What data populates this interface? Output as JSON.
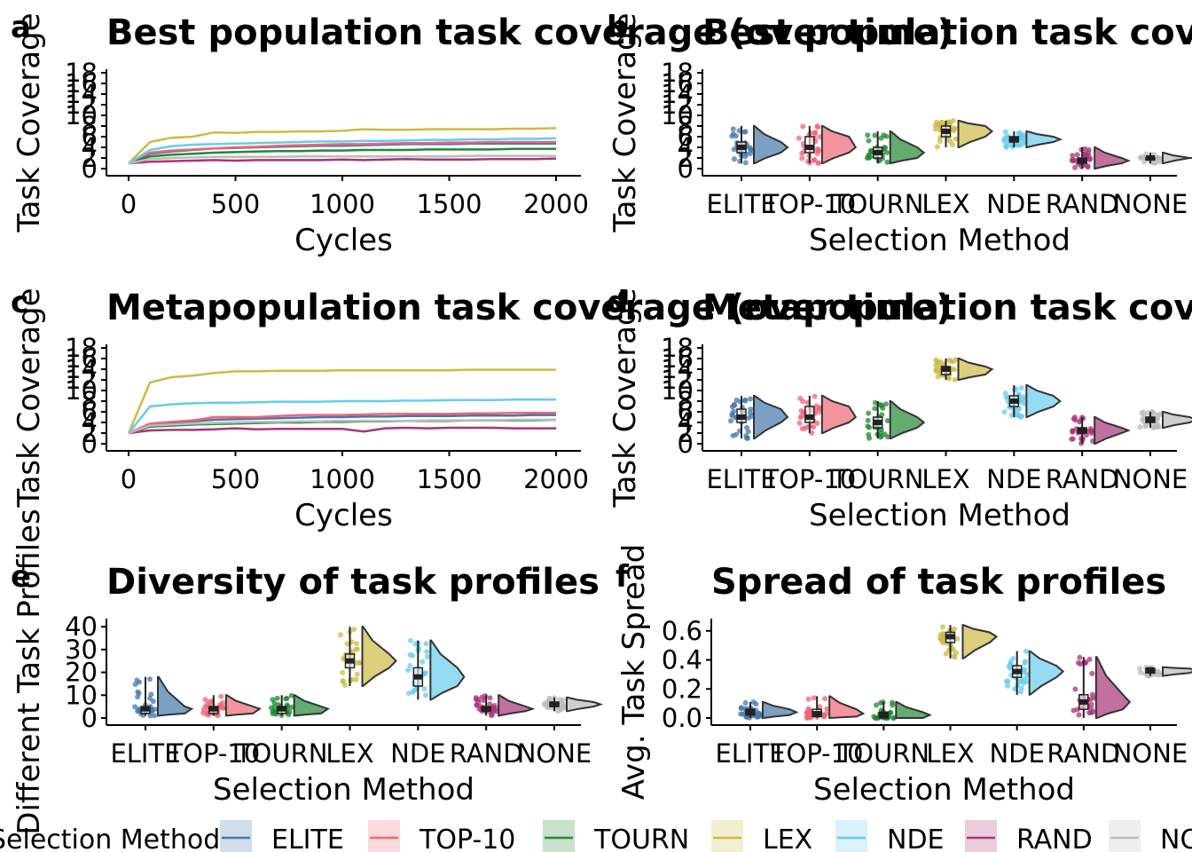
{
  "colors": {
    "ELITE": "#4477AA",
    "TOP-10": "#EE6677",
    "TOURN": "#228833",
    "LEX": "#CCBB44",
    "NDE": "#66CCEE",
    "RAND": "#AA3377",
    "NONE": "#BBBBBB"
  },
  "legend": {
    "title": "Selection Method",
    "items": [
      "ELITE",
      "TOP-10",
      "TOURN",
      "LEX",
      "NDE",
      "RAND",
      "NONE"
    ]
  },
  "chart_data": [
    {
      "tag": "a",
      "type": "line",
      "title": "Best population task coverage (over time)",
      "xlabel": "Cycles",
      "ylabel": "Task Coverage",
      "xlim": [
        0,
        2000
      ],
      "ylim": [
        0,
        18
      ],
      "xticks": [
        "0",
        "500",
        "1000",
        "1500",
        "2000"
      ],
      "yticks": [
        "0",
        "2",
        "4",
        "6",
        "8",
        "10",
        "12",
        "14",
        "16",
        "18"
      ],
      "x": [
        0,
        100,
        200,
        300,
        400,
        500,
        600,
        700,
        800,
        900,
        1000,
        1100,
        1200,
        1300,
        1400,
        1500,
        1600,
        1700,
        1800,
        1900,
        2000
      ],
      "series": [
        {
          "name": "ELITE",
          "values": [
            1,
            2.8,
            3.2,
            3.5,
            3.8,
            3.9,
            4.0,
            4.1,
            4.2,
            4.3,
            4.3,
            4.4,
            4.5,
            4.6,
            4.6,
            4.6,
            4.7,
            4.7,
            4.7,
            4.7,
            4.7
          ]
        },
        {
          "name": "TOP-10",
          "values": [
            1,
            3.0,
            3.4,
            3.6,
            3.8,
            4.0,
            4.1,
            4.3,
            4.4,
            4.5,
            4.6,
            4.6,
            4.7,
            4.8,
            4.8,
            4.9,
            4.9,
            5.0,
            5.0,
            5.0,
            5.0
          ]
        },
        {
          "name": "TOURN",
          "values": [
            1,
            2.3,
            2.6,
            2.8,
            3.0,
            3.1,
            3.2,
            3.3,
            3.3,
            3.4,
            3.4,
            3.5,
            3.5,
            3.5,
            3.6,
            3.6,
            3.6,
            3.6,
            3.7,
            3.7,
            3.7
          ]
        },
        {
          "name": "LEX",
          "values": [
            1,
            5.0,
            5.8,
            6.0,
            6.8,
            6.7,
            6.9,
            6.9,
            7.0,
            7.0,
            7.1,
            7.4,
            7.3,
            7.3,
            7.4,
            7.4,
            7.4,
            7.4,
            7.5,
            7.5,
            7.6
          ]
        },
        {
          "name": "NDE",
          "values": [
            1,
            3.5,
            4.2,
            4.5,
            4.6,
            4.7,
            4.8,
            4.9,
            5.0,
            5.1,
            5.1,
            5.2,
            5.2,
            5.3,
            5.4,
            5.4,
            5.5,
            5.5,
            5.6,
            5.6,
            5.7
          ]
        },
        {
          "name": "RAND",
          "values": [
            1,
            1.3,
            1.4,
            1.5,
            1.6,
            1.5,
            1.6,
            1.6,
            1.6,
            1.6,
            1.7,
            1.6,
            1.7,
            1.8,
            1.7,
            1.7,
            1.7,
            1.8,
            1.8,
            1.8,
            1.9
          ]
        },
        {
          "name": "NONE",
          "values": [
            1,
            1.8,
            2.0,
            2.1,
            2.2,
            2.2,
            2.2,
            2.2,
            2.3,
            2.3,
            2.3,
            2.3,
            2.3,
            2.3,
            2.3,
            2.3,
            2.4,
            2.4,
            2.4,
            2.4,
            2.4
          ]
        }
      ]
    },
    {
      "tag": "b",
      "type": "raincloud",
      "title": "Best population task coverage (end time)",
      "xlabel": "Selection Method",
      "ylabel": "Task Coverage",
      "ylim": [
        0,
        18
      ],
      "yticks": [
        "0",
        "2",
        "4",
        "6",
        "8",
        "10",
        "12",
        "14",
        "16",
        "18"
      ],
      "categories": [
        "ELITE",
        "TOP-10",
        "TOURN",
        "LEX",
        "NDE",
        "RAND",
        "NONE"
      ],
      "groups": [
        {
          "name": "ELITE",
          "min": 1,
          "q1": 3,
          "median": 4,
          "q3": 5,
          "max": 8
        },
        {
          "name": "TOP-10",
          "min": 1,
          "q1": 3,
          "median": 4,
          "q3": 6,
          "max": 8
        },
        {
          "name": "TOURN",
          "min": 1,
          "q1": 2,
          "median": 3,
          "q3": 4,
          "max": 7
        },
        {
          "name": "LEX",
          "min": 4,
          "q1": 6,
          "median": 7,
          "q3": 8,
          "max": 9
        },
        {
          "name": "NDE",
          "min": 4,
          "q1": 5,
          "median": 5.5,
          "q3": 6,
          "max": 7
        },
        {
          "name": "RAND",
          "min": 0,
          "q1": 1,
          "median": 1.5,
          "q3": 2,
          "max": 4
        },
        {
          "name": "NONE",
          "min": 1,
          "q1": 2,
          "median": 2,
          "q3": 2,
          "max": 3
        }
      ]
    },
    {
      "tag": "c",
      "type": "line",
      "title": "Metapopulation task coverage (over time)",
      "xlabel": "Cycles",
      "ylabel": "Task Coverage",
      "xlim": [
        0,
        2000
      ],
      "ylim": [
        0,
        18
      ],
      "xticks": [
        "0",
        "500",
        "1000",
        "1500",
        "2000"
      ],
      "yticks": [
        "0",
        "2",
        "4",
        "6",
        "8",
        "10",
        "12",
        "14",
        "16",
        "18"
      ],
      "x": [
        0,
        100,
        200,
        300,
        400,
        500,
        600,
        700,
        800,
        900,
        1000,
        1100,
        1200,
        1300,
        1400,
        1500,
        1600,
        1700,
        1800,
        1900,
        2000
      ],
      "series": [
        {
          "name": "ELITE",
          "values": [
            2,
            3.6,
            3.9,
            4.2,
            4.5,
            4.6,
            4.7,
            4.8,
            4.9,
            5.0,
            5.0,
            5.1,
            5.1,
            5.2,
            5.2,
            5.2,
            5.3,
            5.3,
            5.3,
            5.4,
            5.4
          ]
        },
        {
          "name": "TOP-10",
          "values": [
            2,
            3.8,
            4.1,
            4.4,
            5.0,
            5.0,
            5.0,
            5.2,
            5.4,
            5.4,
            5.4,
            5.5,
            5.6,
            5.6,
            5.6,
            5.6,
            5.7,
            5.7,
            5.8,
            5.8,
            5.8
          ]
        },
        {
          "name": "TOURN",
          "values": [
            2,
            3.2,
            3.4,
            3.6,
            3.7,
            3.8,
            3.9,
            4.0,
            4.0,
            4.1,
            4.1,
            4.2,
            4.2,
            4.3,
            4.3,
            4.3,
            4.4,
            4.4,
            4.4,
            4.4,
            4.5
          ]
        },
        {
          "name": "LEX",
          "values": [
            2,
            11.5,
            12.5,
            12.8,
            13.3,
            13.6,
            13.6,
            13.7,
            13.7,
            13.7,
            13.8,
            13.8,
            13.8,
            13.8,
            13.8,
            13.8,
            13.9,
            13.9,
            13.9,
            13.9,
            13.9
          ]
        },
        {
          "name": "NDE",
          "values": [
            2,
            7.0,
            7.4,
            7.6,
            7.7,
            7.7,
            7.8,
            7.9,
            7.9,
            7.9,
            8.0,
            8.0,
            8.0,
            8.1,
            8.1,
            8.2,
            8.2,
            8.2,
            8.3,
            8.3,
            8.3
          ]
        },
        {
          "name": "RAND",
          "values": [
            2,
            2.5,
            2.6,
            2.6,
            2.7,
            2.9,
            2.7,
            2.8,
            2.8,
            2.8,
            2.8,
            2.3,
            2.9,
            3.0,
            2.9,
            3.0,
            3.0,
            3.0,
            2.9,
            2.9,
            2.9
          ]
        },
        {
          "name": "NONE",
          "values": [
            2,
            3.4,
            3.6,
            3.8,
            3.9,
            4.0,
            4.1,
            4.1,
            4.2,
            4.2,
            4.3,
            4.3,
            4.3,
            4.3,
            4.4,
            4.4,
            4.4,
            4.4,
            4.5,
            4.5,
            4.5
          ]
        }
      ]
    },
    {
      "tag": "d",
      "type": "raincloud",
      "title": "Metapopulation task coverage (end time)",
      "xlabel": "Selection Method",
      "ylabel": "Task Coverage",
      "ylim": [
        0,
        18
      ],
      "yticks": [
        "0",
        "2",
        "4",
        "6",
        "8",
        "10",
        "12",
        "14",
        "16",
        "18"
      ],
      "categories": [
        "ELITE",
        "TOP-10",
        "TOURN",
        "LEX",
        "NDE",
        "RAND",
        "NONE"
      ],
      "groups": [
        {
          "name": "ELITE",
          "min": 1,
          "q1": 4,
          "median": 5,
          "q3": 6.5,
          "max": 9
        },
        {
          "name": "TOP-10",
          "min": 2,
          "q1": 4,
          "median": 5,
          "q3": 7,
          "max": 9
        },
        {
          "name": "TOURN",
          "min": 1,
          "q1": 3,
          "median": 4,
          "q3": 5,
          "max": 8
        },
        {
          "name": "LEX",
          "min": 12,
          "q1": 13,
          "median": 14,
          "q3": 14.5,
          "max": 16
        },
        {
          "name": "NDE",
          "min": 5,
          "q1": 7,
          "median": 8,
          "q3": 9,
          "max": 11
        },
        {
          "name": "RAND",
          "min": 0,
          "q1": 2,
          "median": 2.5,
          "q3": 3,
          "max": 5
        },
        {
          "name": "NONE",
          "min": 3,
          "q1": 4,
          "median": 4.5,
          "q3": 5,
          "max": 6
        }
      ]
    },
    {
      "tag": "e",
      "type": "raincloud",
      "title": "Diversity of task profiles",
      "xlabel": "Selection Method",
      "ylabel": "Different Task Profiles",
      "ylim": [
        0,
        42
      ],
      "yticks": [
        "0",
        "10",
        "20",
        "30",
        "40"
      ],
      "categories": [
        "ELITE",
        "TOP-10",
        "TOURN",
        "LEX",
        "NDE",
        "RAND",
        "NONE"
      ],
      "groups": [
        {
          "name": "ELITE",
          "min": 1,
          "q1": 2,
          "median": 4,
          "q3": 5,
          "max": 18
        },
        {
          "name": "TOP-10",
          "min": 1,
          "q1": 2,
          "median": 4,
          "q3": 5,
          "max": 10
        },
        {
          "name": "TOURN",
          "min": 1,
          "q1": 2,
          "median": 4,
          "q3": 5,
          "max": 10
        },
        {
          "name": "LEX",
          "min": 14,
          "q1": 22,
          "median": 25,
          "q3": 28,
          "max": 40
        },
        {
          "name": "NDE",
          "min": 8,
          "q1": 14,
          "median": 18,
          "q3": 22,
          "max": 34
        },
        {
          "name": "RAND",
          "min": 1,
          "q1": 3,
          "median": 4,
          "q3": 5,
          "max": 10
        },
        {
          "name": "NONE",
          "min": 3,
          "q1": 5,
          "median": 6,
          "q3": 7,
          "max": 9
        }
      ]
    },
    {
      "tag": "f",
      "type": "raincloud",
      "title": "Spread of task profiles",
      "xlabel": "Selection Method",
      "ylabel": "Avg. Task Spread",
      "ylim": [
        0,
        0.66
      ],
      "yticks": [
        "0.0",
        "0.2",
        "0.4",
        "0.6"
      ],
      "categories": [
        "ELITE",
        "TOP-10",
        "TOURN",
        "LEX",
        "NDE",
        "RAND",
        "NONE"
      ],
      "groups": [
        {
          "name": "ELITE",
          "min": 0,
          "q1": 0.02,
          "median": 0.04,
          "q3": 0.06,
          "max": 0.11
        },
        {
          "name": "TOP-10",
          "min": 0,
          "q1": 0.01,
          "median": 0.03,
          "q3": 0.06,
          "max": 0.15
        },
        {
          "name": "TOURN",
          "min": 0,
          "q1": 0.0,
          "median": 0.02,
          "q3": 0.04,
          "max": 0.11
        },
        {
          "name": "LEX",
          "min": 0.41,
          "q1": 0.52,
          "median": 0.56,
          "q3": 0.59,
          "max": 0.64
        },
        {
          "name": "NDE",
          "min": 0.16,
          "q1": 0.28,
          "median": 0.32,
          "q3": 0.36,
          "max": 0.46
        },
        {
          "name": "RAND",
          "min": 0,
          "q1": 0.06,
          "median": 0.11,
          "q3": 0.16,
          "max": 0.42
        },
        {
          "name": "NONE",
          "min": 0.29,
          "q1": 0.31,
          "median": 0.33,
          "q3": 0.34,
          "max": 0.35
        }
      ]
    }
  ]
}
